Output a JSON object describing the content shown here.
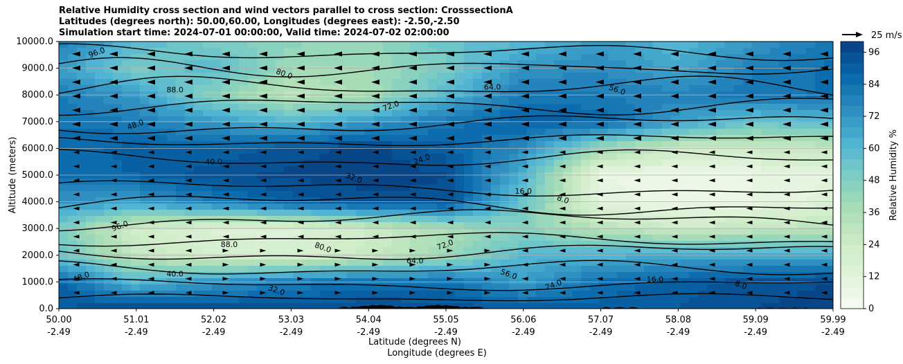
{
  "title": {
    "line1": "Relative Humidity cross section and wind vectors parallel to cross section: CrosssectionA",
    "line2": "Latitudes (degrees north): 50.00,60.00, Longitudes (degrees east): -2.50,-2.50",
    "line3": "Simulation start time: 2024-07-01 00:00:00, Valid time: 2024-07-02 02:00:00"
  },
  "chart_data": {
    "type": "heatmap",
    "ylabel": "Altitude (meters)",
    "xlabel": "Latitude (degrees N)",
    "xlabel2": "Longitude (degrees E)",
    "ylim": [
      0,
      10000
    ],
    "y_ticks": [
      "0.0",
      "1000.0",
      "2000.0",
      "3000.0",
      "4000.0",
      "5000.0",
      "6000.0",
      "7000.0",
      "8000.0",
      "9000.0",
      "10000.0"
    ],
    "x_ticks_lat": [
      "50.00",
      "51.01",
      "52.02",
      "53.03",
      "54.04",
      "55.05",
      "56.06",
      "57.07",
      "58.08",
      "59.09",
      "59.99"
    ],
    "x_ticks_lon": [
      "-2.49",
      "-2.49",
      "-2.49",
      "-2.49",
      "-2.49",
      "-2.49",
      "-2.49",
      "-2.49",
      "-2.49",
      "-2.49",
      "-2.49"
    ],
    "colorbar": {
      "label": "Relative Humidity %",
      "ticks": [
        "0",
        "12",
        "24",
        "36",
        "48",
        "60",
        "72",
        "84",
        "96"
      ],
      "range": [
        0,
        100
      ],
      "colormap": "GnBu"
    },
    "wind_key": "25 m/s",
    "grid": "horizontal",
    "contour_labels": [
      "96.0",
      "88.0",
      "80.0",
      "72.0",
      "64.0",
      "56.0",
      "48.0",
      "40.0",
      "32.0",
      "24.0",
      "16.0",
      "8.0"
    ],
    "rh_profile": [
      {
        "z": 0,
        "values": [
          92,
          96,
          94,
          95,
          96,
          95,
          90,
          90,
          92,
          96,
          98
        ]
      },
      {
        "z": 1000,
        "values": [
          90,
          60,
          72,
          80,
          85,
          84,
          70,
          85,
          90,
          94,
          96
        ]
      },
      {
        "z": 2000,
        "values": [
          55,
          28,
          20,
          18,
          25,
          40,
          60,
          62,
          65,
          66,
          66
        ]
      },
      {
        "z": 3000,
        "values": [
          50,
          22,
          15,
          14,
          24,
          36,
          45,
          32,
          25,
          28,
          32
        ]
      },
      {
        "z": 4000,
        "values": [
          72,
          70,
          80,
          90,
          94,
          95,
          55,
          10,
          6,
          8,
          14
        ]
      },
      {
        "z": 5000,
        "values": [
          85,
          88,
          95,
          97,
          99,
          96,
          62,
          8,
          5,
          8,
          12
        ]
      },
      {
        "z": 6000,
        "values": [
          85,
          90,
          88,
          94,
          98,
          90,
          75,
          40,
          25,
          25,
          28
        ]
      },
      {
        "z": 7000,
        "values": [
          84,
          80,
          70,
          60,
          70,
          82,
          90,
          88,
          70,
          55,
          60
        ]
      },
      {
        "z": 8000,
        "values": [
          80,
          70,
          45,
          30,
          36,
          60,
          82,
          80,
          78,
          82,
          85
        ]
      },
      {
        "z": 9000,
        "values": [
          70,
          50,
          60,
          40,
          40,
          50,
          72,
          76,
          66,
          80,
          85
        ]
      },
      {
        "z": 10000,
        "values": [
          80,
          60,
          50,
          45,
          42,
          55,
          60,
          70,
          60,
          72,
          82
        ]
      }
    ]
  }
}
